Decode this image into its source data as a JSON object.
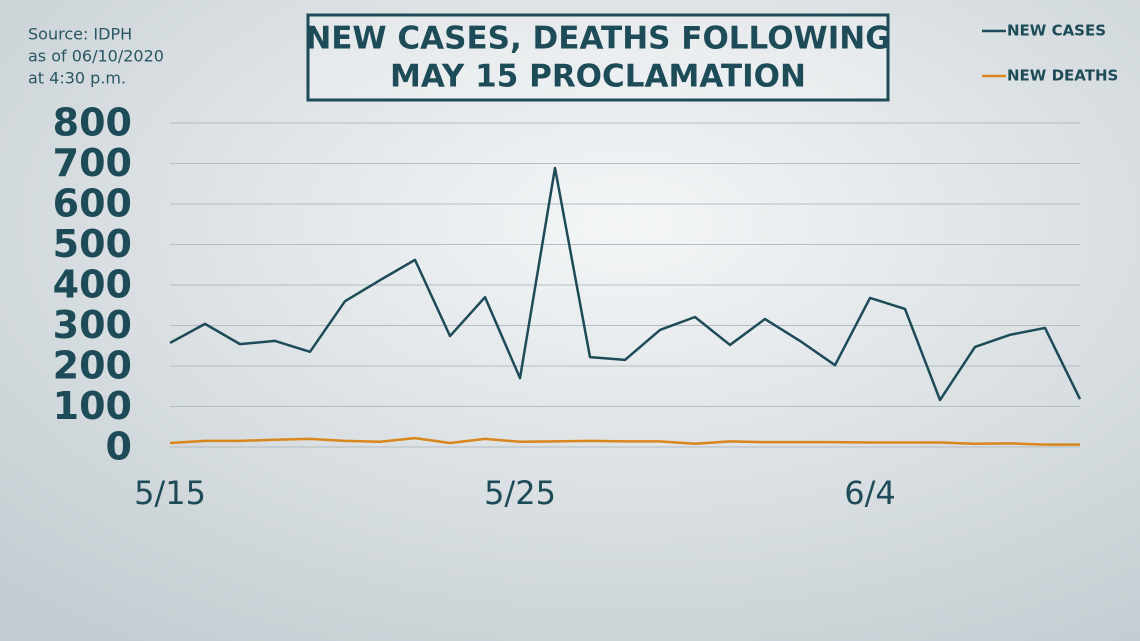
{
  "chart_data": {
    "type": "line",
    "title": [
      "NEW CASES, DEATHS FOLLOWING",
      "MAY 15 PROCLAMATION"
    ],
    "annotations": [
      "Source: IDPH",
      "as of 06/10/2020",
      "at 4:30 p.m."
    ],
    "categories": [
      "5/15",
      null,
      null,
      null,
      null,
      null,
      null,
      null,
      null,
      null,
      "5/25",
      null,
      null,
      null,
      null,
      null,
      null,
      null,
      null,
      null,
      "6/4",
      null,
      null,
      null,
      null,
      null,
      null
    ],
    "series": [
      {
        "name": "NEW CASES",
        "color": "#1d4b58",
        "values": [
          257,
          304,
          254,
          262,
          235,
          360,
          412,
          462,
          274,
          370,
          170,
          689,
          222,
          215,
          289,
          321,
          252,
          316,
          262,
          202,
          368,
          341,
          116,
          247,
          277,
          294,
          118
        ]
      },
      {
        "name": "NEW DEATHS",
        "color": "#d9861c",
        "values": [
          10,
          15,
          15,
          18,
          20,
          15,
          13,
          22,
          10,
          20,
          13,
          14,
          15,
          14,
          14,
          8,
          14,
          12,
          12,
          12,
          11,
          11,
          11,
          8,
          9,
          6,
          6
        ]
      }
    ],
    "ylim": [
      0,
      800
    ],
    "yticks": [
      0,
      100,
      200,
      300,
      400,
      500,
      600,
      700,
      800
    ],
    "grid": true,
    "legend": "top-right"
  }
}
